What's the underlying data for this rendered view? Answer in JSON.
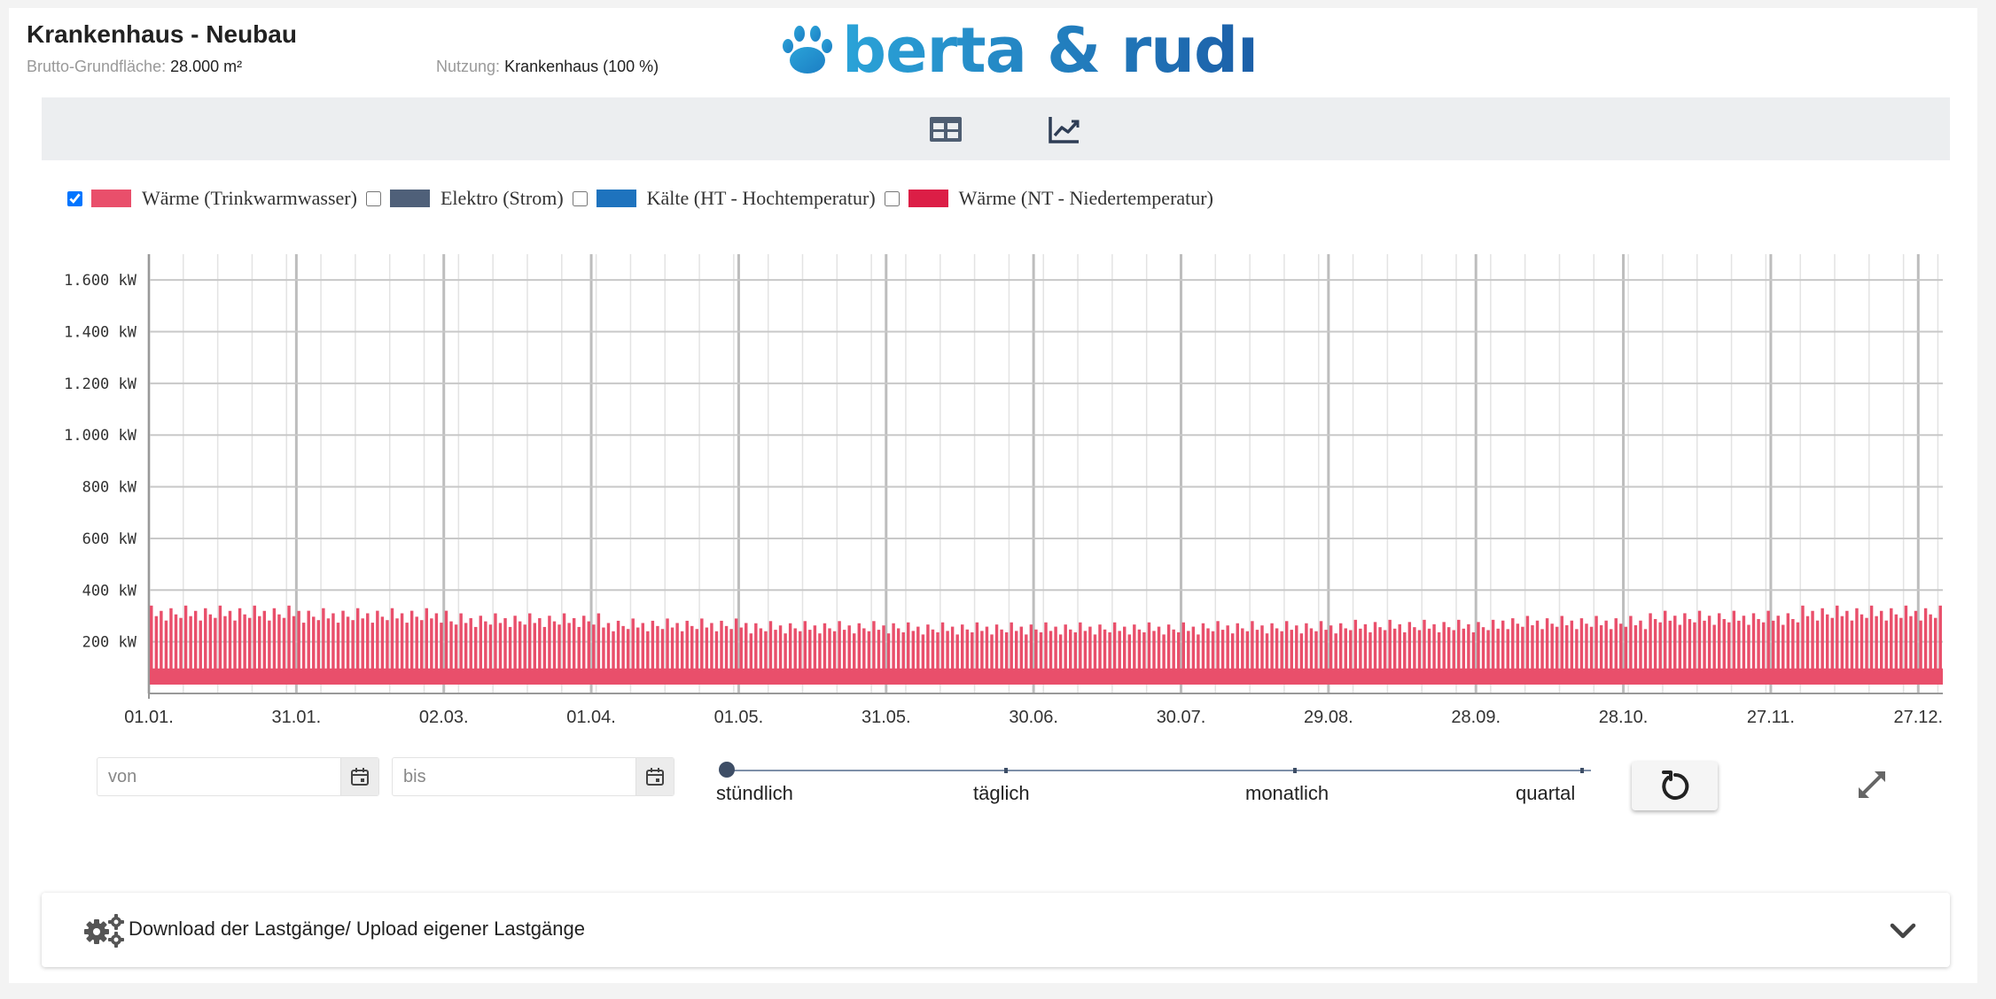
{
  "header": {
    "title": "Krankenhaus - Neubau",
    "area_label": "Brutto-Grundfläche:",
    "area_value": "28.000 m²",
    "usage_label": "Nutzung:",
    "usage_value": "Krankenhaus (100 %)",
    "logo_text": "berta & rudı"
  },
  "toolbar": {
    "table_icon": "table-icon",
    "chart_icon": "line-chart-icon",
    "active": "chart"
  },
  "legend": [
    {
      "label": "Wärme (Trinkwarmwasser)",
      "checked": true,
      "color": "#e94f6b"
    },
    {
      "label": "Elektro (Strom)",
      "checked": false,
      "color": "#4f6079"
    },
    {
      "label": "Kälte (HT - Hochtemperatur)",
      "checked": false,
      "color": "#1e73be"
    },
    {
      "label": "Wärme (NT - Niedertemperatur)",
      "checked": false,
      "color": "#dc1e46"
    }
  ],
  "chart_data": {
    "type": "bar",
    "y_unit": "kW",
    "ylim": [
      0,
      1700
    ],
    "y_ticks": [
      200,
      400,
      600,
      800,
      1000,
      1200,
      1400,
      1600
    ],
    "y_tick_labels": [
      "200 kW",
      "400 kW",
      "600 kW",
      "800 kW",
      "1.000 kW",
      "1.200 kW",
      "1.400 kW",
      "1.600 kW"
    ],
    "x_tick_labels": [
      "01.01.",
      "31.01.",
      "02.03.",
      "01.04.",
      "01.05.",
      "31.05.",
      "30.06.",
      "30.07.",
      "29.08.",
      "28.09.",
      "28.10.",
      "27.11.",
      "27.12."
    ],
    "x_tick_days": [
      0,
      30,
      60,
      90,
      120,
      150,
      180,
      210,
      240,
      270,
      300,
      330,
      360
    ],
    "x_range_days": [
      0,
      365
    ],
    "grid": true,
    "series": [
      {
        "name": "Wärme (Trinkwarmwasser)",
        "color": "#e94f6b",
        "daily_min_kW": 90,
        "daily_peak_kW_by_month": [
          340,
          330,
          310,
          290,
          280,
          275,
          275,
          280,
          285,
          300,
          320,
          340
        ]
      }
    ]
  },
  "controls": {
    "from_placeholder": "von",
    "to_placeholder": "bis",
    "calendar_icon": "calendar-icon",
    "resolution_options": [
      "stündlich",
      "täglich",
      "monatlich",
      "quartal"
    ],
    "resolution_selected": "stündlich",
    "reset_icon": "reset-icon",
    "expand_icon": "expand-icon"
  },
  "accordion": {
    "icon": "gears-icon",
    "label": "Download der Lastgänge/ Upload eigener Lastgänge",
    "chevron_icon": "chevron-down-icon"
  }
}
